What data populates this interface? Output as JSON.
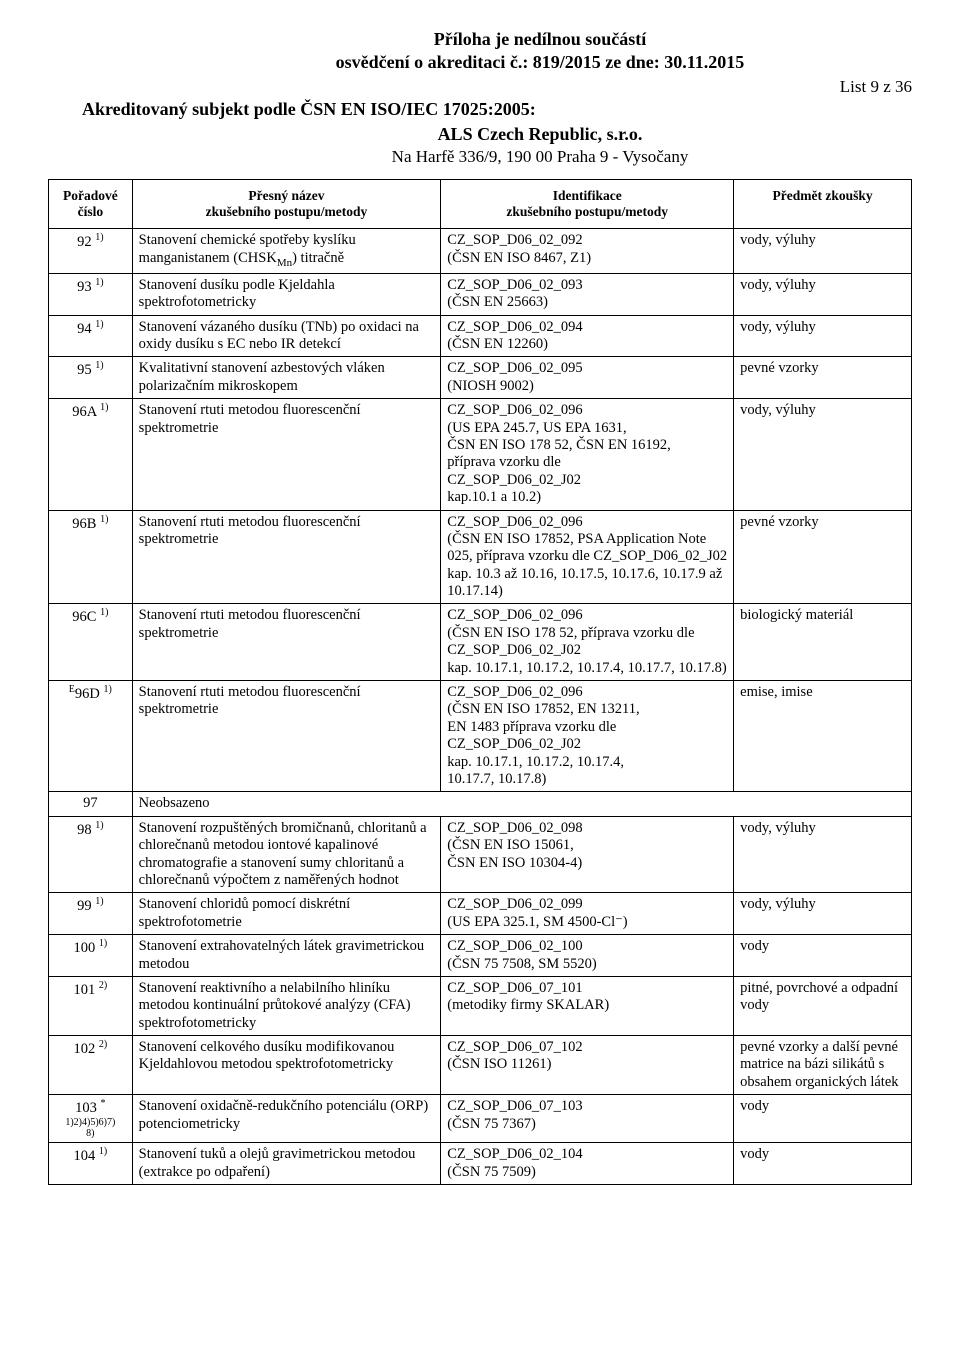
{
  "header": {
    "line1": "Příloha je nedílnou součástí",
    "line2": "osvědčení o akreditaci č.: 819/2015 ze dne: 30.11.2015",
    "list_label": "List 9 z 36",
    "subject_line": "Akreditovaný subjekt podle ČSN EN ISO/IEC 17025:2005:",
    "lab_name": "ALS Czech Republic, s.r.o.",
    "address": "Na Harfě 336/9, 190 00  Praha 9 - Vysočany"
  },
  "table": {
    "columns": {
      "c1": "Pořadové číslo",
      "c2": "Přesný název\nzkušebního postupu/metody",
      "c3": "Identifikace\nzkušebního postupu/metody",
      "c4": "Předmět zkoušky"
    },
    "rows": [
      {
        "num": "92",
        "sup": "1)",
        "name": "Stanovení chemické spotřeby kyslíku manganistanem (CHSKMn) titračně",
        "mn_sub": true,
        "id": "CZ_SOP_D06_02_092\n(ČSN EN ISO 8467, Z1)",
        "subj": "vody, výluhy"
      },
      {
        "num": "93",
        "sup": "1)",
        "name": "Stanovení dusíku podle Kjeldahla spektrofotometricky",
        "id": "CZ_SOP_D06_02_093\n(ČSN EN 25663)",
        "subj": "vody, výluhy"
      },
      {
        "num": "94",
        "sup": "1)",
        "name": "Stanovení vázaného dusíku (TNb) po oxidaci na oxidy dusíku s EC nebo IR detekcí",
        "id": "CZ_SOP_D06_02_094\n(ČSN EN 12260)",
        "subj": "vody, výluhy"
      },
      {
        "num": "95",
        "sup": "1)",
        "name": "Kvalitativní stanovení azbestových vláken polarizačním mikroskopem",
        "id": "CZ_SOP_D06_02_095\n(NIOSH 9002)",
        "subj": "pevné vzorky"
      },
      {
        "num": "96A",
        "sup": "1)",
        "name": "Stanovení rtuti metodou fluorescenční spektrometrie",
        "id": "CZ_SOP_D06_02_096\n(US EPA 245.7, US EPA 1631,\nČSN EN ISO 178 52, ČSN EN 16192,\npříprava vzorku dle\nCZ_SOP_D06_02_J02\nkap.10.1 a 10.2)",
        "subj": "vody, výluhy"
      },
      {
        "num": "96B",
        "sup": "1)",
        "name": "Stanovení rtuti metodou fluorescenční spektrometrie",
        "id": "CZ_SOP_D06_02_096\n(ČSN EN ISO 17852, PSA Application Note 025, příprava vzorku dle CZ_SOP_D06_02_J02\nkap. 10.3 až 10.16, 10.17.5, 10.17.6, 10.17.9 až 10.17.14)",
        "subj": "pevné vzorky"
      },
      {
        "num": "96C",
        "sup": "1)",
        "name": "Stanovení rtuti metodou fluorescenční spektrometrie",
        "id": "CZ_SOP_D06_02_096\n(ČSN EN ISO 178 52, příprava vzorku dle CZ_SOP_D06_02_J02\nkap. 10.17.1, 10.17.2, 10.17.4, 10.17.7, 10.17.8)",
        "subj": "biologický materiál"
      },
      {
        "num": "E96D",
        "sup": "1)",
        "pre": "E",
        "name": "Stanovení rtuti metodou fluorescenční spektrometrie",
        "id": "CZ_SOP_D06_02_096\n(ČSN EN ISO 17852, EN 13211,\nEN 1483 příprava vzorku dle\nCZ_SOP_D06_02_J02\nkap. 10.17.1, 10.17.2, 10.17.4,\n10.17.7, 10.17.8)",
        "subj": "emise, imise"
      },
      {
        "num": "97",
        "sup": "",
        "name": "Neobsazeno",
        "id": "",
        "subj": "",
        "span": true
      },
      {
        "num": "98",
        "sup": "1)",
        "name": "Stanovení rozpuštěných bromičnanů, chloritanů a chlorečnanů metodou iontové kapalinové chromatografie a stanovení sumy chloritanů a chlorečnanů výpočtem z naměřených hodnot",
        "id": "CZ_SOP_D06_02_098\n(ČSN EN ISO 15061,\nČSN EN ISO 10304-4)",
        "subj": "vody, výluhy"
      },
      {
        "num": "99",
        "sup": "1)",
        "name": "Stanovení chloridů pomocí diskrétní spektrofotometrie",
        "id": "CZ_SOP_D06_02_099\n(US EPA 325.1, SM 4500-Cl⁻)",
        "subj": "vody, výluhy"
      },
      {
        "num": "100",
        "sup": "1)",
        "name": "Stanovení extrahovatelných látek gravimetrickou metodou",
        "id": "CZ_SOP_D06_02_100\n(ČSN 75 7508, SM 5520)",
        "subj": "vody"
      },
      {
        "num": "101",
        "sup": "2)",
        "name": "Stanovení reaktivního a nelabilního hliníku metodou kontinuální průtokové analýzy (CFA) spektrofotometricky",
        "id": "CZ_SOP_D06_07_101\n(metodiky firmy SKALAR)",
        "subj": "pitné, povrchové a odpadní vody"
      },
      {
        "num": "102",
        "sup": "2)",
        "name": "Stanovení celkového dusíku modifikovanou Kjeldahlovou metodou spektrofotometricky",
        "id": "CZ_SOP_D06_07_102\n(ČSN ISO 11261)",
        "subj": "pevné vzorky a další pevné matrice na bázi silikátů s obsahem organických látek"
      },
      {
        "num": "103",
        "sup": "*",
        "subsup": "1)2)4)5)6)7)8)",
        "name": "Stanovení oxidačně-redukčního potenciálu (ORP) potenciometricky",
        "id": "CZ_SOP_D06_07_103\n(ČSN 75 7367)",
        "subj": "vody"
      },
      {
        "num": "104",
        "sup": "1)",
        "name": "Stanovení tuků a olejů gravimetrickou metodou (extrakce po odpaření)",
        "id": "CZ_SOP_D06_02_104\n(ČSN 75 7509)",
        "subj": "vody"
      }
    ]
  }
}
